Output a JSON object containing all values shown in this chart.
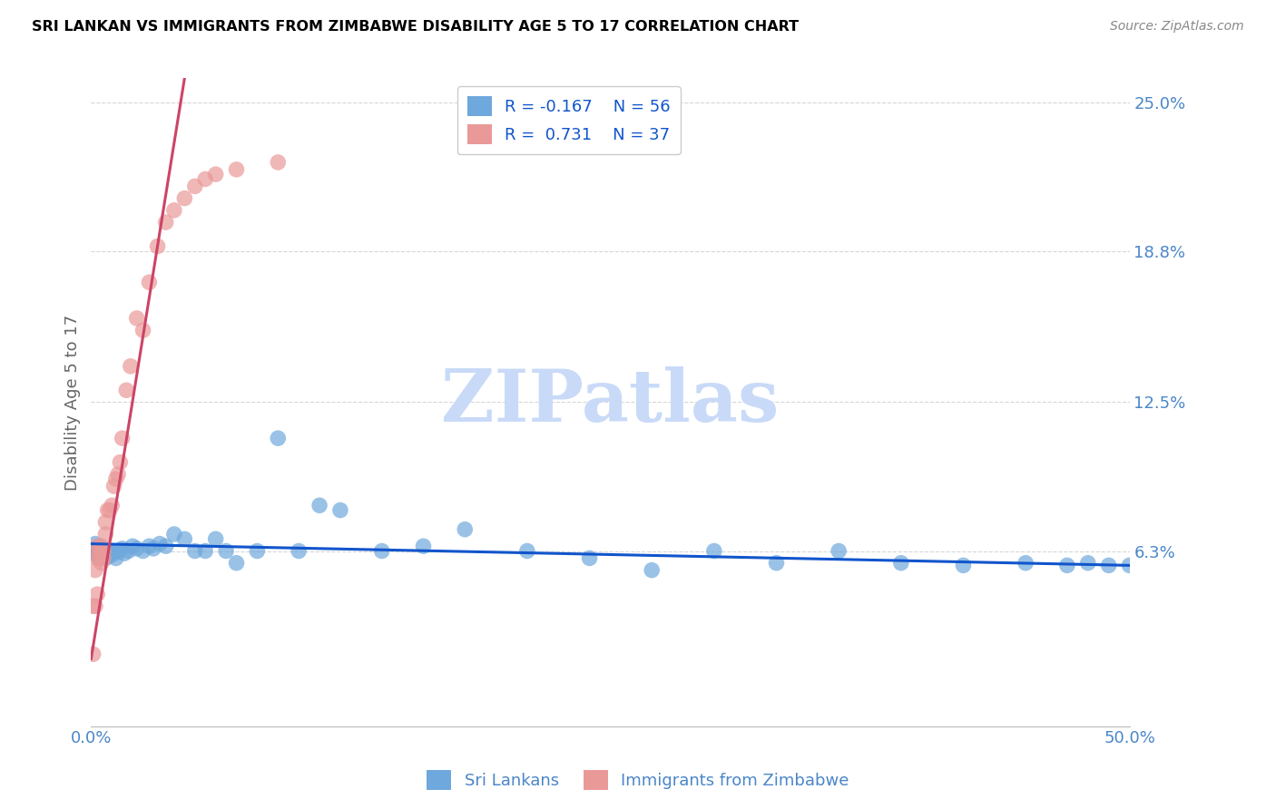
{
  "title": "SRI LANKAN VS IMMIGRANTS FROM ZIMBABWE DISABILITY AGE 5 TO 17 CORRELATION CHART",
  "source": "Source: ZipAtlas.com",
  "ylabel": "Disability Age 5 to 17",
  "xlim": [
    0.0,
    0.5
  ],
  "ylim": [
    -0.01,
    0.26
  ],
  "yticks": [
    0.063,
    0.125,
    0.188,
    0.25
  ],
  "ytick_labels": [
    "6.3%",
    "12.5%",
    "18.8%",
    "25.0%"
  ],
  "xticks": [
    0.0,
    0.1,
    0.2,
    0.3,
    0.4,
    0.5
  ],
  "xtick_labels": [
    "0.0%",
    "",
    "",
    "",
    "",
    "50.0%"
  ],
  "blue_R": "-0.167",
  "blue_N": "56",
  "pink_R": "0.731",
  "pink_N": "37",
  "blue_color": "#6fa8dc",
  "pink_color": "#ea9999",
  "blue_line_color": "#1155cc",
  "pink_line_color": "#cc4466",
  "legend_label_blue": "Sri Lankans",
  "legend_label_pink": "Immigrants from Zimbabwe",
  "watermark": "ZIPatlas",
  "watermark_color": "#c9daf8",
  "title_color": "#000000",
  "source_color": "#888888",
  "axis_label_color": "#4a86c8",
  "grid_color": "#cccccc",
  "blue_x": [
    0.001,
    0.002,
    0.002,
    0.003,
    0.003,
    0.004,
    0.004,
    0.004,
    0.005,
    0.005,
    0.006,
    0.007,
    0.008,
    0.009,
    0.01,
    0.011,
    0.012,
    0.013,
    0.015,
    0.016,
    0.018,
    0.02,
    0.022,
    0.025,
    0.028,
    0.03,
    0.033,
    0.036,
    0.04,
    0.045,
    0.05,
    0.055,
    0.06,
    0.065,
    0.07,
    0.08,
    0.09,
    0.1,
    0.11,
    0.12,
    0.14,
    0.16,
    0.18,
    0.21,
    0.24,
    0.27,
    0.3,
    0.33,
    0.36,
    0.39,
    0.42,
    0.45,
    0.47,
    0.48,
    0.49,
    0.5
  ],
  "blue_y": [
    0.063,
    0.062,
    0.066,
    0.061,
    0.064,
    0.06,
    0.063,
    0.065,
    0.061,
    0.063,
    0.062,
    0.06,
    0.063,
    0.061,
    0.063,
    0.062,
    0.06,
    0.063,
    0.064,
    0.062,
    0.063,
    0.065,
    0.064,
    0.063,
    0.065,
    0.064,
    0.066,
    0.065,
    0.07,
    0.068,
    0.063,
    0.063,
    0.068,
    0.063,
    0.058,
    0.063,
    0.11,
    0.063,
    0.082,
    0.08,
    0.063,
    0.065,
    0.072,
    0.063,
    0.06,
    0.055,
    0.063,
    0.058,
    0.063,
    0.058,
    0.057,
    0.058,
    0.057,
    0.058,
    0.057,
    0.057
  ],
  "pink_x": [
    0.001,
    0.001,
    0.002,
    0.002,
    0.003,
    0.003,
    0.003,
    0.004,
    0.004,
    0.005,
    0.005,
    0.006,
    0.006,
    0.007,
    0.007,
    0.008,
    0.009,
    0.01,
    0.011,
    0.012,
    0.013,
    0.014,
    0.015,
    0.017,
    0.019,
    0.022,
    0.025,
    0.028,
    0.032,
    0.036,
    0.04,
    0.045,
    0.05,
    0.055,
    0.06,
    0.07,
    0.09
  ],
  "pink_y": [
    0.02,
    0.04,
    0.04,
    0.055,
    0.045,
    0.06,
    0.065,
    0.06,
    0.063,
    0.058,
    0.065,
    0.06,
    0.063,
    0.07,
    0.075,
    0.08,
    0.08,
    0.082,
    0.09,
    0.093,
    0.095,
    0.1,
    0.11,
    0.13,
    0.14,
    0.16,
    0.155,
    0.175,
    0.19,
    0.2,
    0.205,
    0.21,
    0.215,
    0.218,
    0.22,
    0.222,
    0.225
  ],
  "blue_line_x": [
    0.0,
    0.5
  ],
  "blue_line_y_start": 0.066,
  "blue_line_y_end": 0.057,
  "pink_line_x_start": 0.0,
  "pink_line_x_end": 0.045,
  "pink_line_y_start": 0.018,
  "pink_line_y_end": 0.26
}
